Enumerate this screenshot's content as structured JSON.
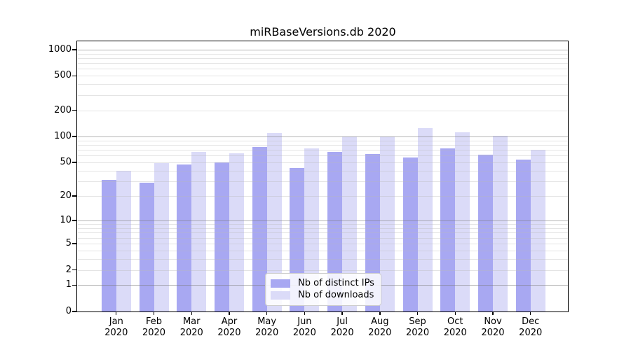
{
  "title": "miRBaseVersions.db 2020",
  "chart_data": {
    "type": "bar",
    "title": "miRBaseVersions.db 2020",
    "categories": [
      "Jan",
      "Feb",
      "Mar",
      "Apr",
      "May",
      "Jun",
      "Jul",
      "Aug",
      "Sep",
      "Oct",
      "Nov",
      "Dec"
    ],
    "category_year": "2020",
    "series": [
      {
        "name": "Nb of distinct IPs",
        "color": "#a8a8f2",
        "values": [
          31,
          29,
          47,
          50,
          76,
          43,
          66,
          63,
          57,
          73,
          62,
          54
        ]
      },
      {
        "name": "Nb of downloads",
        "color": "#dbdbf8",
        "values": [
          40,
          49,
          66,
          64,
          110,
          73,
          100,
          101,
          125,
          112,
          102,
          70
        ]
      }
    ],
    "yscale": "log1p",
    "ylim": [
      0,
      1245
    ],
    "y_tick_values": [
      0,
      1,
      2,
      5,
      10,
      20,
      50,
      100,
      200,
      500,
      1000
    ],
    "y_major_gridlines": [
      1,
      10,
      100,
      1000
    ],
    "y_minor_gridlines": [
      2,
      3,
      4,
      5,
      6,
      7,
      8,
      9,
      20,
      30,
      40,
      50,
      60,
      70,
      80,
      90,
      200,
      300,
      400,
      500,
      600,
      700,
      800,
      900
    ],
    "grid": true,
    "legend_position": "lower center",
    "xlabel": "",
    "ylabel": ""
  },
  "legend": {
    "entries": [
      "Nb of distinct IPs",
      "Nb of downloads"
    ]
  },
  "colors": {
    "background": "#ffffff",
    "text": "#000000",
    "axis": "#000000",
    "grid_major": "rgba(120,120,120,0.55)",
    "grid_minor": "rgba(185,185,185,0.38)",
    "legend_border": "#cccccc",
    "legend_background": "rgba(255,255,255,0.85)"
  }
}
